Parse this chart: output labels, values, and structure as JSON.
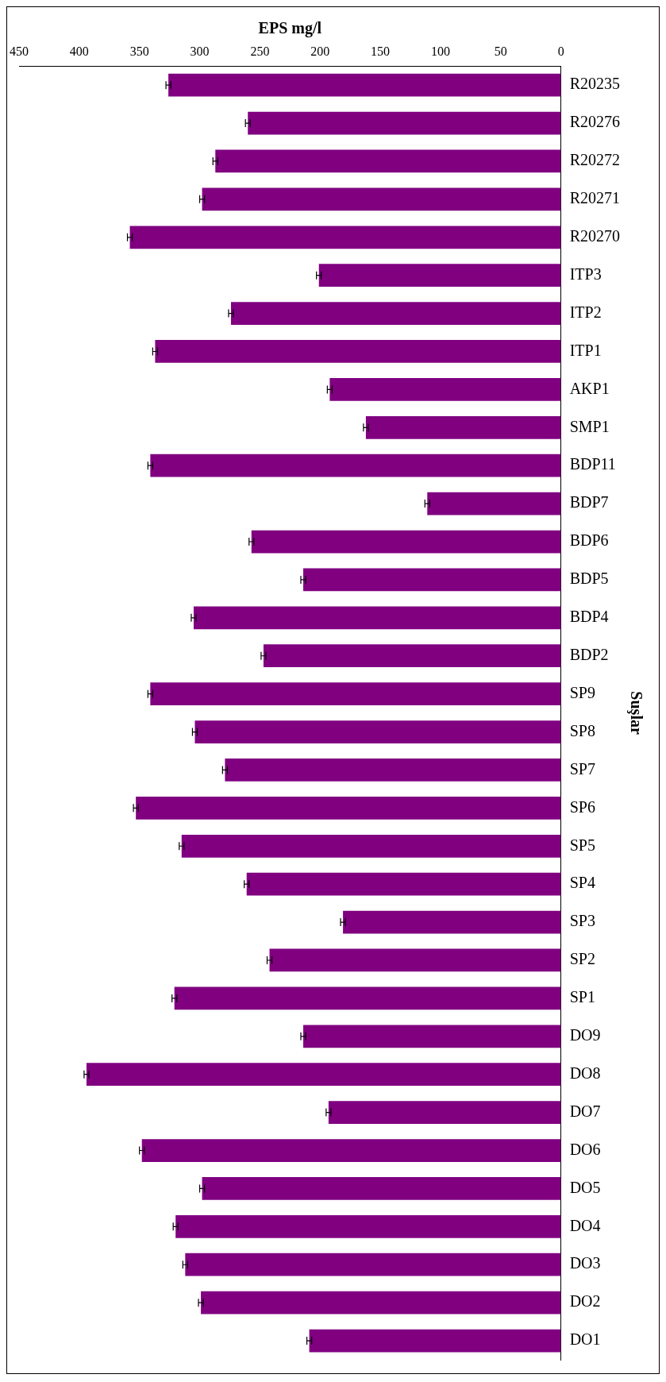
{
  "chart_data": {
    "type": "bar",
    "orientation": "horizontal",
    "categories": [
      "R20235",
      "R20276",
      "R20272",
      "R20271",
      "R20270",
      "ITP3",
      "ITP2",
      "ITP1",
      "AKP1",
      "SMP1",
      "BDP11",
      "BDP7",
      "BDP6",
      "BDP5",
      "BDP4",
      "BDP2",
      "SP9",
      "SP8",
      "SP7",
      "SP6",
      "SP5",
      "SP4",
      "SP3",
      "SP2",
      "SP1",
      "DO9",
      "DO8",
      "DO7",
      "DO6",
      "DO5",
      "DO4",
      "DO3",
      "DO2",
      "DO1"
    ],
    "values": [
      326,
      260,
      287,
      298,
      358,
      201,
      274,
      337,
      192,
      162,
      341,
      111,
      257,
      214,
      305,
      247,
      341,
      304,
      279,
      353,
      315,
      261,
      181,
      242,
      321,
      214,
      394,
      193,
      348,
      298,
      320,
      312,
      299,
      209
    ],
    "errors": [
      2,
      2,
      2,
      2,
      2,
      2,
      2,
      2,
      2,
      2,
      2,
      2,
      2,
      2,
      2,
      2,
      2,
      2,
      2,
      2,
      2,
      2,
      2,
      2,
      2,
      2,
      2,
      2,
      2,
      2,
      2,
      2,
      2,
      2
    ],
    "color": "#800080",
    "xlim": [
      450,
      0
    ],
    "xticks": [
      450,
      400,
      350,
      300,
      250,
      200,
      150,
      100,
      50,
      0
    ],
    "xlabel": "EPS mg/l",
    "ylabel": "Suşlar",
    "grid": false,
    "legend": false
  }
}
